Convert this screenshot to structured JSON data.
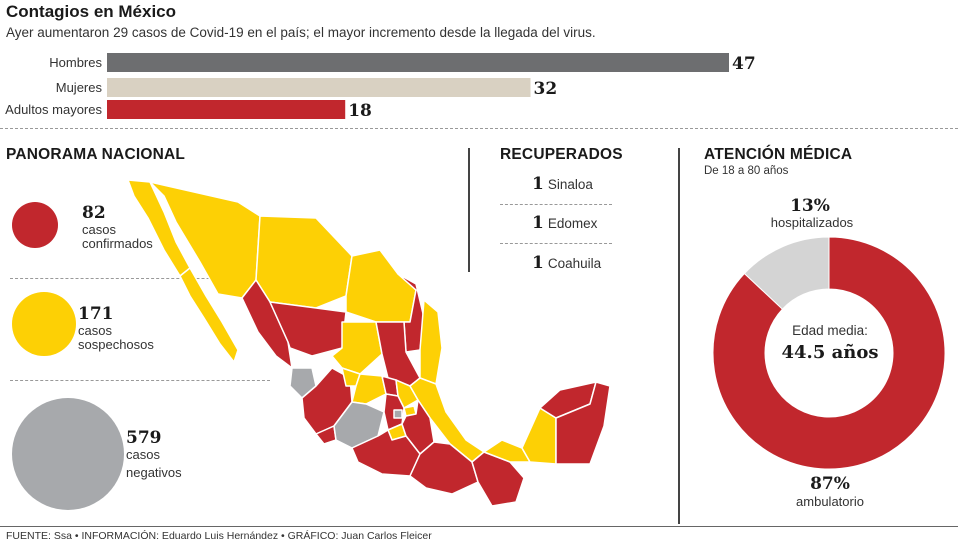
{
  "header": {
    "title": "Contagios en México",
    "subtitle": "Ayer aumentaron 29 casos de Covid-19 en el país; el mayor incremento desde la llegada del virus."
  },
  "chart_data": [
    {
      "type": "bar",
      "orientation": "horizontal",
      "categories": [
        "Hombres",
        "Mujeres",
        "Adultos mayores"
      ],
      "values": [
        47,
        32,
        18
      ],
      "colors": [
        "#6d6e70",
        "#d9d1c2",
        "#c1272d"
      ]
    },
    {
      "type": "pie",
      "donut": true,
      "title": "ATENCIÓN MÉDICA",
      "subtitle": "De 18 a 80 años",
      "slices": [
        {
          "label": "hospitalizados",
          "value": 13,
          "display": "13%",
          "color": "#d4d4d4"
        },
        {
          "label": "ambulatorio",
          "value": 87,
          "display": "87%",
          "color": "#c1272d"
        }
      ],
      "center_label": "Edad media:",
      "center_value": "44.5 años"
    }
  ],
  "panorama": {
    "title": "PANORAMA NACIONAL",
    "items": [
      {
        "value": "82",
        "line1": "casos",
        "line2": "confirmados",
        "color": "#c1272d",
        "size_value": 82
      },
      {
        "value": "171",
        "line1": "casos",
        "line2": "sospechosos",
        "color": "#fdd005",
        "size_value": 171
      },
      {
        "value": "579",
        "line1": "casos",
        "line2": "negativos",
        "color": "#a7a9ac",
        "size_value": 579
      }
    ]
  },
  "recuperados": {
    "title": "RECUPERADOS",
    "items": [
      {
        "count": "1",
        "state": "Sinaloa"
      },
      {
        "count": "1",
        "state": "Edomex"
      },
      {
        "count": "1",
        "state": "Coahuila"
      }
    ]
  },
  "colors": {
    "confirmed": "#c1272d",
    "suspected": "#fdd005",
    "negative": "#a7a9ac",
    "map_border": "#ffffff"
  },
  "footer": {
    "source": "FUENTE: Ssa • INFORMACIÓN: Eduardo Luis Hernández • GRÁFICO: Juan Carlos Fleicer"
  }
}
